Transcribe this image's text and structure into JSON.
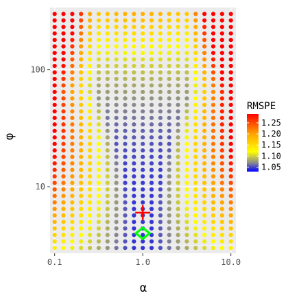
{
  "chart_data": {
    "type": "scatter",
    "xlabel": "α",
    "ylabel": "φ",
    "x_scale": "log",
    "y_scale": "log",
    "x_range": [
      0.0887,
      11.4
    ],
    "y_range": [
      2.7,
      340
    ],
    "x_ticks": [
      {
        "value": 0.1,
        "label": "0.1"
      },
      {
        "value": 1,
        "label": "1.0"
      },
      {
        "value": 10,
        "label": "10.0"
      }
    ],
    "y_ticks": [
      {
        "value": 10,
        "label": "10"
      },
      {
        "value": 100,
        "label": "100"
      }
    ],
    "grid": true,
    "panel_background": "#ebebeb",
    "grid_x_points": {
      "min": 0.1,
      "max": 10,
      "count": 21
    },
    "grid_y_points": {
      "min": 3,
      "max": 300,
      "count": 37
    },
    "color_scale": {
      "title": "RMSPE",
      "range": [
        1.03,
        1.29
      ],
      "stops": [
        {
          "value": 1.03,
          "color": "#0000ff"
        },
        {
          "value": 1.07,
          "color": "#8c8c8c"
        },
        {
          "value": 1.12,
          "color": "#ffff00"
        },
        {
          "value": 1.2,
          "color": "#ffa500"
        },
        {
          "value": 1.29,
          "color": "#ff0000"
        }
      ],
      "ticks": [
        {
          "value": 1.05,
          "label": "1.05"
        },
        {
          "value": 1.1,
          "label": "1.10"
        },
        {
          "value": 1.15,
          "label": "1.15"
        },
        {
          "value": 1.2,
          "label": "1.20"
        },
        {
          "value": 1.25,
          "label": "1.25"
        }
      ]
    },
    "markers": [
      {
        "shape": "cross",
        "x": 1.0,
        "y": 6,
        "color": "#ff0000"
      },
      {
        "shape": "diamond",
        "x": 1.0,
        "y": 4,
        "color": "#00ff00"
      }
    ]
  }
}
